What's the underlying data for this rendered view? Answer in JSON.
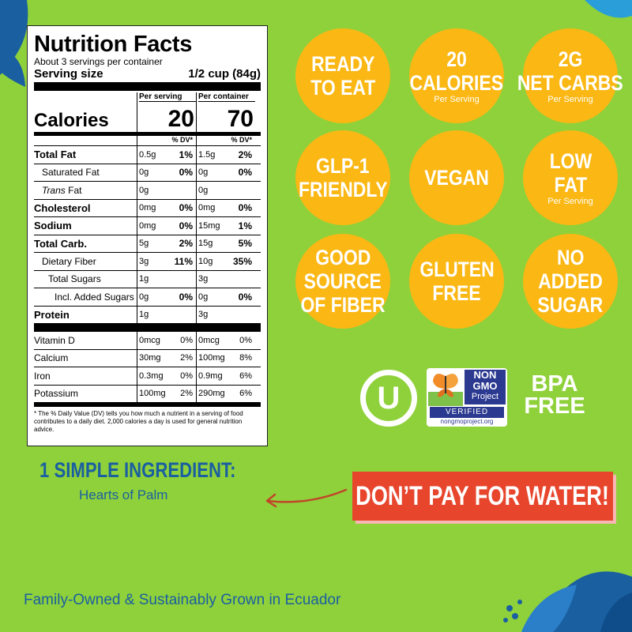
{
  "nutrition": {
    "title": "Nutrition Facts",
    "servings_per_container": "About 3 servings per container",
    "serving_size_label": "Serving size",
    "serving_size_value": "1/2 cup (84g)",
    "per_serving_header": "Per serving",
    "per_container_header": "Per container",
    "calories_label": "Calories",
    "calories_serving": "20",
    "calories_container": "70",
    "dv_header": "% DV*",
    "rows": [
      {
        "label": "Total Fat",
        "s_amt": "0.5g",
        "s_pct": "1%",
        "c_amt": "1.5g",
        "c_pct": "2%"
      },
      {
        "label": "Saturated Fat",
        "s_amt": "0g",
        "s_pct": "0%",
        "c_amt": "0g",
        "c_pct": "0%"
      },
      {
        "label_italic": "Trans",
        "label": "Fat",
        "s_amt": "0g",
        "s_pct": "",
        "c_amt": "0g",
        "c_pct": ""
      },
      {
        "label": "Cholesterol",
        "s_amt": "0mg",
        "s_pct": "0%",
        "c_amt": "0mg",
        "c_pct": "0%"
      },
      {
        "label": "Sodium",
        "s_amt": "0mg",
        "s_pct": "0%",
        "c_amt": "15mg",
        "c_pct": "1%"
      },
      {
        "label": "Total Carb.",
        "s_amt": "5g",
        "s_pct": "2%",
        "c_amt": "15g",
        "c_pct": "5%"
      },
      {
        "label": "Dietary Fiber",
        "s_amt": "3g",
        "s_pct": "11%",
        "c_amt": "10g",
        "c_pct": "35%"
      },
      {
        "label": "Total Sugars",
        "s_amt": "1g",
        "s_pct": "",
        "c_amt": "3g",
        "c_pct": ""
      },
      {
        "label": "Incl. Added Sugars",
        "s_amt": "0g",
        "s_pct": "0%",
        "c_amt": "0g",
        "c_pct": "0%"
      },
      {
        "label": "Protein",
        "s_amt": "1g",
        "s_pct": "",
        "c_amt": "3g",
        "c_pct": ""
      }
    ],
    "micros": [
      {
        "label": "Vitamin D",
        "s_amt": "0mcg",
        "s_pct": "0%",
        "c_amt": "0mcg",
        "c_pct": "0%"
      },
      {
        "label": "Calcium",
        "s_amt": "30mg",
        "s_pct": "2%",
        "c_amt": "100mg",
        "c_pct": "8%"
      },
      {
        "label": "Iron",
        "s_amt": "0.3mg",
        "s_pct": "0%",
        "c_amt": "0.9mg",
        "c_pct": "6%"
      },
      {
        "label": "Potassium",
        "s_amt": "100mg",
        "s_pct": "2%",
        "c_amt": "290mg",
        "c_pct": "6%"
      }
    ],
    "footnote": "* The % Daily Value (DV) tells you how much a nutrient in a serving of food contributes to a daily diet. 2,000 calories a day is used for general nutrition advice."
  },
  "badges": [
    {
      "line1": "READY",
      "line2": "TO EAT",
      "line3": "",
      "sub": ""
    },
    {
      "line1": "20",
      "line2": "CALORIES",
      "line3": "",
      "sub": "Per Serving"
    },
    {
      "line1": "2G",
      "line2": "NET CARBS",
      "line3": "",
      "sub": "Per Serving"
    },
    {
      "line1": "GLP-1",
      "line2": "FRIENDLY",
      "line3": "",
      "sub": ""
    },
    {
      "line1": "VEGAN",
      "line2": "",
      "line3": "",
      "sub": ""
    },
    {
      "line1": "LOW",
      "line2": "FAT",
      "line3": "",
      "sub": "Per Serving"
    },
    {
      "line1": "GOOD",
      "line2": "SOURCE",
      "line3": "OF FIBER",
      "sub": ""
    },
    {
      "line1": "GLUTEN",
      "line2": "FREE",
      "line3": "",
      "sub": ""
    },
    {
      "line1": "NO",
      "line2": "ADDED",
      "line3": "SUGAR",
      "sub": ""
    }
  ],
  "certifications": {
    "kosher_symbol": "U",
    "nongmo_line1": "NON",
    "nongmo_line2": "GMO",
    "nongmo_line3": "Project",
    "nongmo_verified": "VERIFIED",
    "nongmo_url": "nongmoproject.org",
    "bpa_line1": "BPA",
    "bpa_line2": "FREE"
  },
  "ingredient": {
    "title": "1 SIMPLE INGREDIENT:",
    "name": "Hearts of Palm"
  },
  "callout": "DON’T PAY FOR WATER!",
  "footer": "Family-Owned & Sustainably Grown in Ecuador",
  "colors": {
    "background": "#8fd13b",
    "badge": "#fbb713",
    "accent_blue": "#1a5fa0",
    "callout_red": "#e8452d"
  }
}
